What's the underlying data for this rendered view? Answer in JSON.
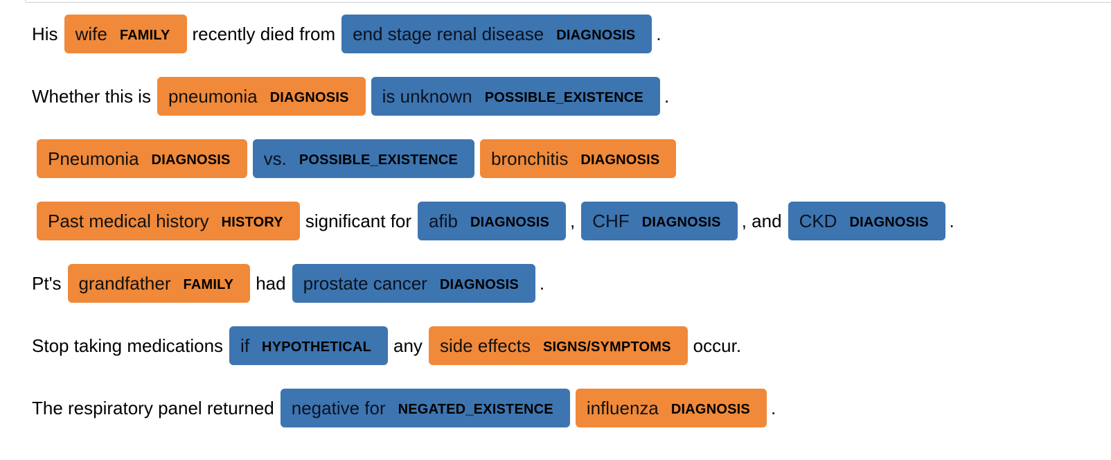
{
  "colors": {
    "orange": "#f08939",
    "blue": "#3d75b0"
  },
  "sentences": [
    {
      "pieces": [
        {
          "type": "text",
          "text": "His"
        },
        {
          "type": "entity",
          "text": "wife",
          "label": "FAMILY",
          "color": "orange"
        },
        {
          "type": "text",
          "text": "recently died from"
        },
        {
          "type": "entity",
          "text": "end stage renal disease",
          "label": "DIAGNOSIS",
          "color": "blue"
        },
        {
          "type": "text",
          "text": "."
        }
      ]
    },
    {
      "pieces": [
        {
          "type": "text",
          "text": "Whether this is"
        },
        {
          "type": "entity",
          "text": "pneumonia",
          "label": "DIAGNOSIS",
          "color": "orange"
        },
        {
          "type": "entity",
          "text": "is unknown",
          "label": "POSSIBLE_EXISTENCE",
          "color": "blue"
        },
        {
          "type": "text",
          "text": "."
        }
      ]
    },
    {
      "pieces": [
        {
          "type": "entity",
          "text": "Pneumonia",
          "label": "DIAGNOSIS",
          "color": "orange"
        },
        {
          "type": "entity",
          "text": "vs.",
          "label": "POSSIBLE_EXISTENCE",
          "color": "blue"
        },
        {
          "type": "entity",
          "text": "bronchitis",
          "label": "DIAGNOSIS",
          "color": "orange"
        }
      ]
    },
    {
      "pieces": [
        {
          "type": "entity",
          "text": "Past medical history",
          "label": "HISTORY",
          "color": "orange"
        },
        {
          "type": "text",
          "text": "significant for"
        },
        {
          "type": "entity",
          "text": "afib",
          "label": "DIAGNOSIS",
          "color": "blue"
        },
        {
          "type": "text",
          "text": ","
        },
        {
          "type": "entity",
          "text": "CHF",
          "label": "DIAGNOSIS",
          "color": "blue"
        },
        {
          "type": "text",
          "text": ", and"
        },
        {
          "type": "entity",
          "text": "CKD",
          "label": "DIAGNOSIS",
          "color": "blue"
        },
        {
          "type": "text",
          "text": "."
        }
      ]
    },
    {
      "pieces": [
        {
          "type": "text",
          "text": "Pt's"
        },
        {
          "type": "entity",
          "text": "grandfather",
          "label": "FAMILY",
          "color": "orange"
        },
        {
          "type": "text",
          "text": "had"
        },
        {
          "type": "entity",
          "text": "prostate cancer",
          "label": "DIAGNOSIS",
          "color": "blue"
        },
        {
          "type": "text",
          "text": "."
        }
      ]
    },
    {
      "pieces": [
        {
          "type": "text",
          "text": "Stop taking medications"
        },
        {
          "type": "entity",
          "text": "if",
          "label": "HYPOTHETICAL",
          "color": "blue"
        },
        {
          "type": "text",
          "text": "any"
        },
        {
          "type": "entity",
          "text": "side effects",
          "label": "SIGNS/SYMPTOMS",
          "color": "orange"
        },
        {
          "type": "text",
          "text": "occur."
        }
      ]
    },
    {
      "pieces": [
        {
          "type": "text",
          "text": "The respiratory panel returned"
        },
        {
          "type": "entity",
          "text": "negative for",
          "label": "NEGATED_EXISTENCE",
          "color": "blue"
        },
        {
          "type": "entity",
          "text": "influenza",
          "label": "DIAGNOSIS",
          "color": "orange"
        },
        {
          "type": "text",
          "text": "."
        }
      ]
    }
  ]
}
